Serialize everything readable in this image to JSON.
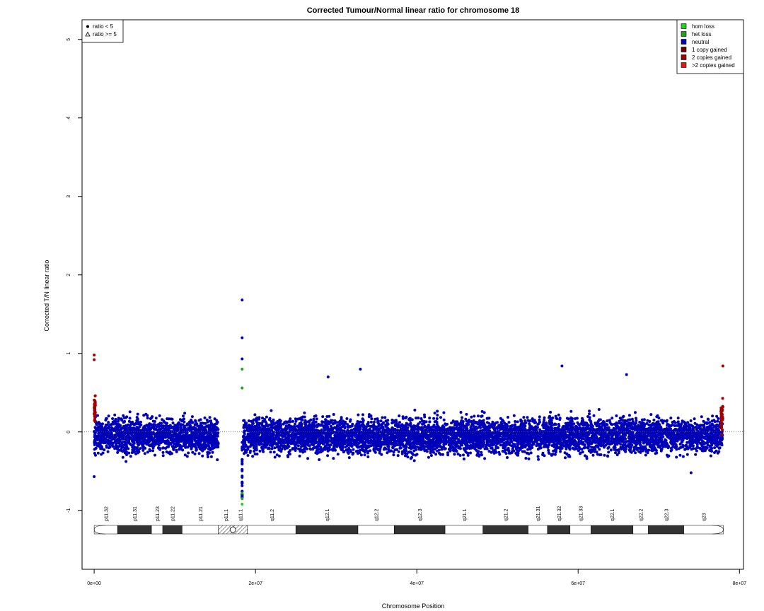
{
  "chart_data": {
    "type": "scatter",
    "title": "Corrected Tumour/Normal linear ratio for chromosome  18",
    "xlabel": "Chromosome Position",
    "ylabel": "Corrected T/N linear ratio",
    "xlim": [
      -1500000,
      80500000
    ],
    "ylim": [
      -1.75,
      5.25
    ],
    "x_ticks": [
      0,
      20000000,
      40000000,
      60000000,
      80000000
    ],
    "x_tick_labels": [
      "0e+00",
      "2e+07",
      "4e+07",
      "6e+07",
      "8e+07"
    ],
    "y_ticks": [
      -1,
      0,
      1,
      2,
      3,
      4,
      5
    ],
    "y_tick_labels": [
      "-1",
      "0",
      "1",
      "2",
      "3",
      "4",
      "5"
    ],
    "reference_line": 0,
    "shape_legend": {
      "position": "top-left",
      "entries": [
        {
          "symbol": "circle",
          "label": "ratio < 5"
        },
        {
          "symbol": "triangle",
          "label": "ratio >= 5"
        }
      ]
    },
    "color_legend": {
      "position": "top-right",
      "entries": [
        {
          "label": "hom loss",
          "color": "#1dd61d"
        },
        {
          "label": "het loss",
          "color": "#1aa81a"
        },
        {
          "label": "neutral",
          "color": "#0000b8"
        },
        {
          "label": "1 copy gained",
          "color": "#6b0000"
        },
        {
          "label": "2 copies gained",
          "color": "#a00000"
        },
        {
          "label": ">2 copies gained",
          "color": "#e01a1a"
        }
      ]
    },
    "segments": [
      {
        "x_start": 0,
        "x_end": 15400000,
        "state": "neutral",
        "y_center": -0.05,
        "y_spread": 0.36
      },
      {
        "x_start": 18500000,
        "x_end": 77900000,
        "state": "neutral",
        "y_center": -0.05,
        "y_spread": 0.38
      },
      {
        "x_start": 0,
        "x_end": 150000,
        "state": "2 copies gained",
        "y_center": 0.3,
        "y_spread": 0.35
      },
      {
        "x_start": 77700000,
        "x_end": 77950000,
        "state": "2 copies gained",
        "y_center": 0.2,
        "y_spread": 0.35
      }
    ],
    "notable_points": [
      {
        "x": 18350000,
        "y": 1.68,
        "state": "neutral"
      },
      {
        "x": 18350000,
        "y": 1.2,
        "state": "neutral"
      },
      {
        "x": 18350000,
        "y": 0.93,
        "state": "neutral"
      },
      {
        "x": 18350000,
        "y": 0.8,
        "state": "het loss"
      },
      {
        "x": 18350000,
        "y": 0.56,
        "state": "het loss"
      },
      {
        "x": 18350000,
        "y": -0.85,
        "state": "het loss"
      },
      {
        "x": 18350000,
        "y": -0.92,
        "state": "hom loss"
      },
      {
        "x": 18350000,
        "y": -0.78,
        "state": "het loss"
      },
      {
        "x": 29000000,
        "y": 0.7,
        "state": "neutral"
      },
      {
        "x": 33000000,
        "y": 0.8,
        "state": "neutral"
      },
      {
        "x": 58000000,
        "y": 0.84,
        "state": "neutral"
      },
      {
        "x": 66000000,
        "y": 0.73,
        "state": "neutral"
      },
      {
        "x": 0,
        "y": 0.98,
        "state": "2 copies gained"
      },
      {
        "x": 0,
        "y": 0.92,
        "state": "2 copies gained"
      },
      {
        "x": 77950000,
        "y": 0.84,
        "state": "2 copies gained"
      },
      {
        "x": 0,
        "y": -0.57,
        "state": "neutral"
      },
      {
        "x": 74000000,
        "y": -0.52,
        "state": "neutral"
      }
    ],
    "ideogram": {
      "chromosome_length": 78000000,
      "centromere_x": 17200000,
      "bands": [
        {
          "name": "p11.32",
          "start": 0,
          "end": 2900000,
          "stain": "gneg"
        },
        {
          "name": "p11.31",
          "start": 2900000,
          "end": 7100000,
          "stain": "gpos"
        },
        {
          "name": "p11.23",
          "start": 7100000,
          "end": 8500000,
          "stain": "gneg"
        },
        {
          "name": "p11.22",
          "start": 8500000,
          "end": 10900000,
          "stain": "gpos"
        },
        {
          "name": "p11.21",
          "start": 10900000,
          "end": 15400000,
          "stain": "gneg"
        },
        {
          "name": "p11.1",
          "start": 15400000,
          "end": 17200000,
          "stain": "acen"
        },
        {
          "name": "q11.1",
          "start": 17200000,
          "end": 19000000,
          "stain": "acen"
        },
        {
          "name": "q11.2",
          "start": 19000000,
          "end": 25000000,
          "stain": "gneg"
        },
        {
          "name": "q12.1",
          "start": 25000000,
          "end": 32700000,
          "stain": "gpos"
        },
        {
          "name": "q12.2",
          "start": 32700000,
          "end": 37200000,
          "stain": "gneg"
        },
        {
          "name": "q12.3",
          "start": 37200000,
          "end": 43500000,
          "stain": "gpos"
        },
        {
          "name": "q21.1",
          "start": 43500000,
          "end": 48200000,
          "stain": "gneg"
        },
        {
          "name": "q21.2",
          "start": 48200000,
          "end": 53800000,
          "stain": "gpos"
        },
        {
          "name": "q21.31",
          "start": 53800000,
          "end": 56200000,
          "stain": "gneg"
        },
        {
          "name": "q21.32",
          "start": 56200000,
          "end": 59000000,
          "stain": "gpos"
        },
        {
          "name": "q21.33",
          "start": 59000000,
          "end": 61600000,
          "stain": "gneg"
        },
        {
          "name": "q22.1",
          "start": 61600000,
          "end": 66800000,
          "stain": "gpos"
        },
        {
          "name": "q22.2",
          "start": 66800000,
          "end": 68700000,
          "stain": "gneg"
        },
        {
          "name": "q22.3",
          "start": 68700000,
          "end": 73100000,
          "stain": "gpos"
        },
        {
          "name": "q23",
          "start": 73100000,
          "end": 78000000,
          "stain": "gneg"
        }
      ]
    }
  }
}
